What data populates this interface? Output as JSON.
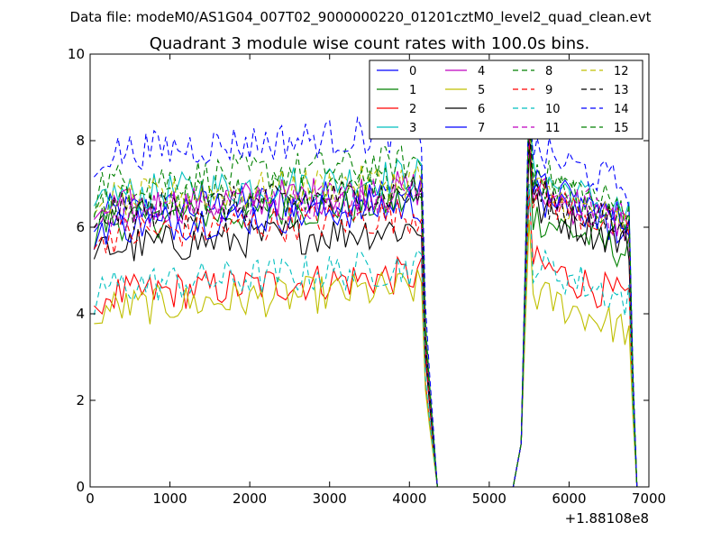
{
  "chart_data": {
    "type": "line",
    "suptitle": "Data file: modeM0/AS1G04_007T02_9000000220_01201cztM0_level2_quad_clean.evt",
    "title": "Quadrant 3 module wise count rates with 100.0s bins.",
    "xlabel": "",
    "ylabel": "",
    "xlim": [
      0,
      7000
    ],
    "ylim": [
      0,
      10
    ],
    "x_offset_label": "+1.88108e8",
    "x_ticks": [
      0,
      1000,
      2000,
      3000,
      4000,
      5000,
      6000,
      7000
    ],
    "y_ticks": [
      0,
      2,
      4,
      6,
      8,
      10
    ],
    "grid": false,
    "legend": {
      "placement": "top-right",
      "columns": 4
    },
    "series": [
      {
        "name": "0",
        "color": "#0000ff",
        "dash": "solid",
        "level": 6.3,
        "post": 6.8
      },
      {
        "name": "1",
        "color": "#008000",
        "dash": "solid",
        "level": 6.1,
        "post": 6.3
      },
      {
        "name": "2",
        "color": "#ff0000",
        "dash": "solid",
        "level": 4.4,
        "post": 5.2
      },
      {
        "name": "3",
        "color": "#00bfbf",
        "dash": "solid",
        "level": 6.7,
        "post": 7.2
      },
      {
        "name": "4",
        "color": "#bf00bf",
        "dash": "solid",
        "level": 6.4,
        "post": 6.9
      },
      {
        "name": "5",
        "color": "#bfbf00",
        "dash": "solid",
        "level": 4.1,
        "post": 4.5
      },
      {
        "name": "6",
        "color": "#000000",
        "dash": "solid",
        "level": 5.5,
        "post": 6.5
      },
      {
        "name": "7",
        "color": "#0000ff",
        "dash": "solid",
        "level": 6.0,
        "post": 7.0
      },
      {
        "name": "8",
        "color": "#008000",
        "dash": "dashed",
        "level": 7.0,
        "post": 7.3
      },
      {
        "name": "9",
        "color": "#ff0000",
        "dash": "dashed",
        "level": 5.8,
        "post": 6.8
      },
      {
        "name": "10",
        "color": "#00bfbf",
        "dash": "dashed",
        "level": 4.6,
        "post": 5.2
      },
      {
        "name": "11",
        "color": "#bf00bf",
        "dash": "dashed",
        "level": 6.3,
        "post": 7.0
      },
      {
        "name": "12",
        "color": "#bfbf00",
        "dash": "dashed",
        "level": 6.6,
        "post": 6.9
      },
      {
        "name": "13",
        "color": "#000000",
        "dash": "dashed",
        "level": 6.3,
        "post": 6.8
      },
      {
        "name": "14",
        "color": "#0000ff",
        "dash": "dashed",
        "level": 7.7,
        "post": 7.8
      },
      {
        "name": "15",
        "color": "#008000",
        "dash": "dashed",
        "level": 6.5,
        "post": 7.1
      }
    ],
    "segments": {
      "first_active": [
        50,
        4150
      ],
      "drop": [
        4150,
        4350
      ],
      "gap": [
        4350,
        5300
      ],
      "rise": [
        5300,
        5500
      ],
      "second_active": [
        5500,
        6750
      ],
      "end_drop": [
        6750,
        6850
      ]
    }
  }
}
